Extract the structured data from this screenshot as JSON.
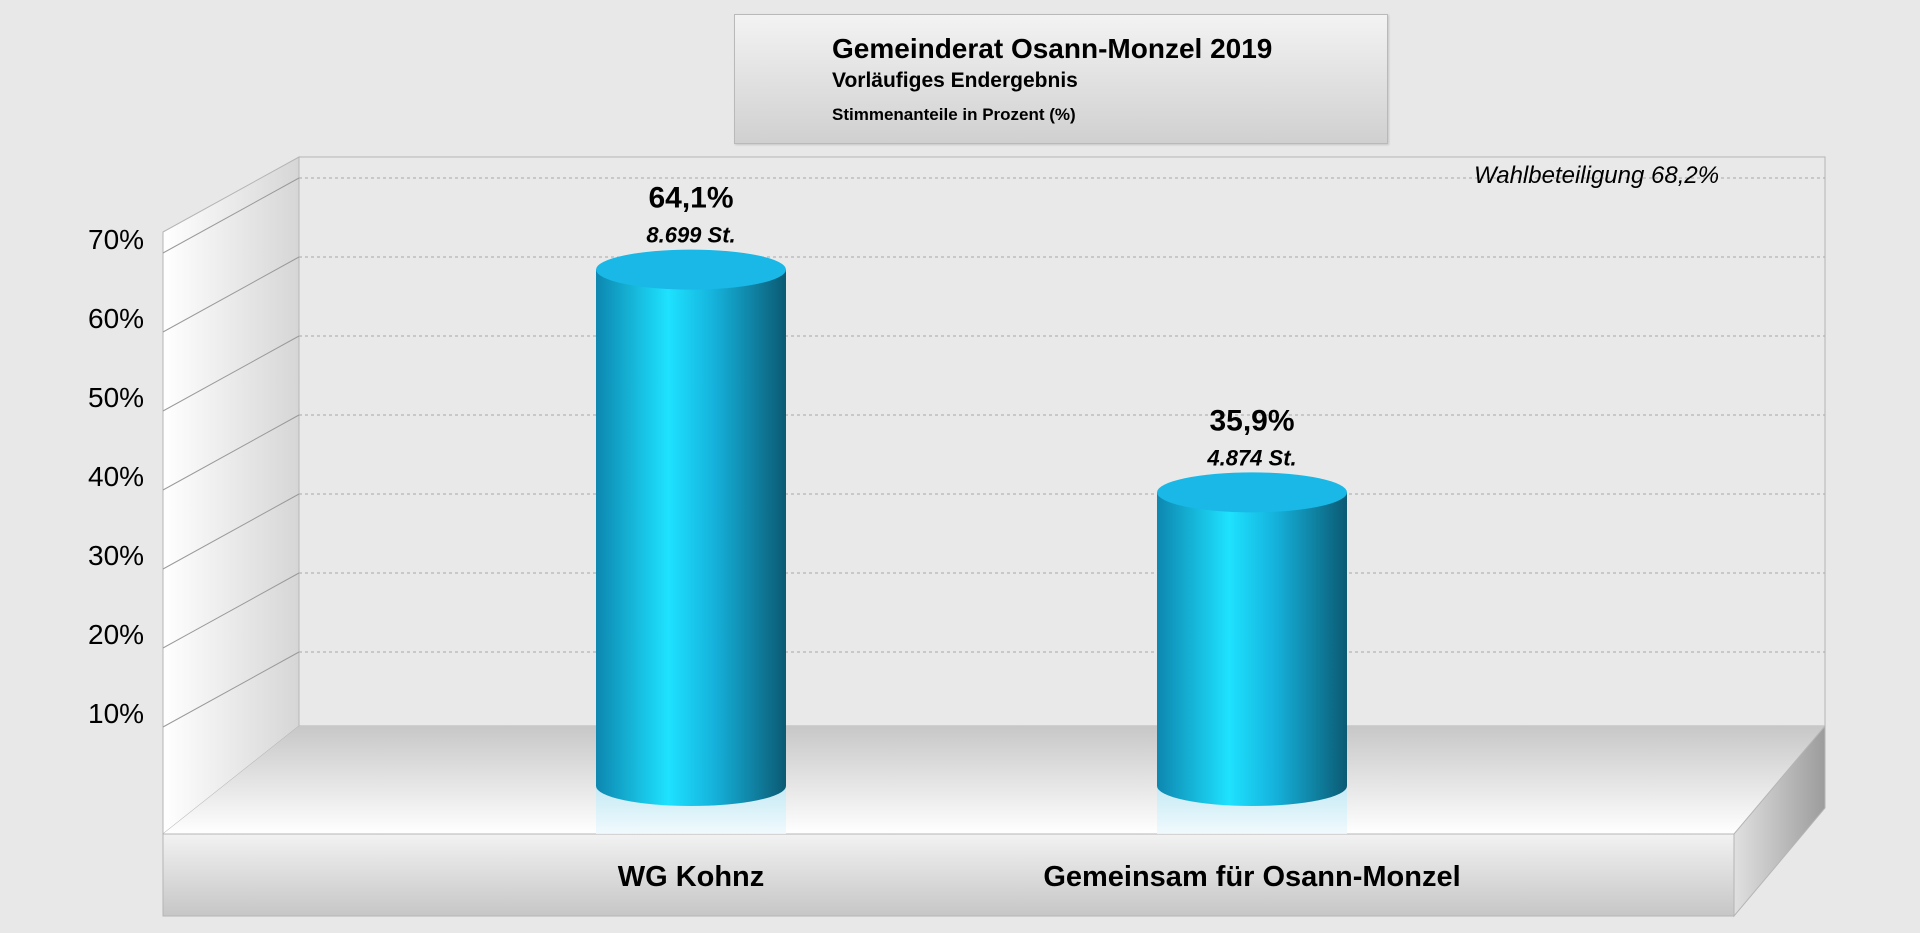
{
  "title": {
    "line1": "Gemeinderat Osann-Monzel 2019",
    "line2": "Vorläufiges Endergebnis",
    "line3": "Stimmenanteile in Prozent (%)"
  },
  "annotation": "Wahlbeteiligung 68,2%",
  "colors": {
    "bar": "#19b8e6",
    "bar_highlight": "#1ee2ff",
    "bar_dark": "#0b5a73",
    "background": "#e8e8e8"
  },
  "chart_data": {
    "type": "bar",
    "style": "3d-cylinder",
    "categories": [
      "WG Kohnz",
      "Gemeinsam für Osann-Monzel"
    ],
    "values": [
      64.1,
      35.9
    ],
    "value_labels": [
      "64,1%",
      "35,9%"
    ],
    "vote_labels": [
      "8.699 St.",
      "4.874 St."
    ],
    "title": "Gemeinderat Osann-Monzel 2019",
    "subtitle": "Vorläufiges Endergebnis",
    "ylabel": "Stimmenanteile in Prozent (%)",
    "xlabel": "",
    "ylim": [
      0,
      70
    ],
    "yticks": [
      "10%",
      "20%",
      "30%",
      "40%",
      "50%",
      "60%",
      "70%"
    ],
    "grid": true
  }
}
